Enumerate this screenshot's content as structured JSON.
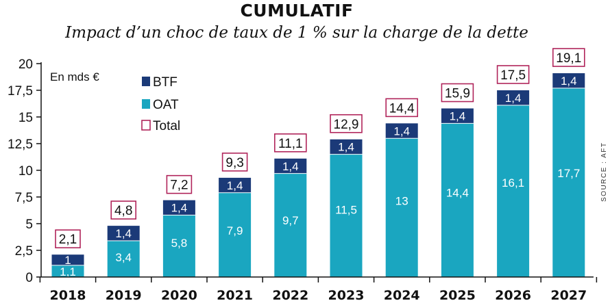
{
  "chart_data": {
    "type": "bar",
    "stacked": true,
    "title": "CUMULATIF",
    "subtitle": "Impact d’un choc de taux de 1 % sur la charge de la dette",
    "unit_label": "En mds €",
    "source": "SOURCE : AFT",
    "categories": [
      "2018",
      "2019",
      "2020",
      "2021",
      "2022",
      "2023",
      "2024",
      "2025",
      "2026",
      "2027"
    ],
    "series": [
      {
        "name": "OAT",
        "color": "#1aa6c0",
        "values": [
          1.1,
          3.4,
          5.8,
          7.9,
          9.7,
          11.5,
          13,
          14.4,
          16.1,
          17.7
        ],
        "labels": [
          "1,1",
          "3,4",
          "5,8",
          "7,9",
          "9,7",
          "11,5",
          "13",
          "14,4",
          "16,1",
          "17,7"
        ]
      },
      {
        "name": "BTF",
        "color": "#1b3a78",
        "values": [
          1,
          1.4,
          1.4,
          1.4,
          1.4,
          1.4,
          1.4,
          1.4,
          1.4,
          1.4
        ],
        "labels": [
          "1",
          "1,4",
          "1,4",
          "1,4",
          "1,4",
          "1,4",
          "1,4",
          "1,4",
          "1,4",
          "1,4"
        ]
      }
    ],
    "totals": {
      "name": "Total",
      "color": "#b0245a",
      "values": [
        2.1,
        4.8,
        7.2,
        9.3,
        11.1,
        12.9,
        14.4,
        15.9,
        17.5,
        19.1
      ],
      "labels": [
        "2,1",
        "4,8",
        "7,2",
        "9,3",
        "11,1",
        "12,9",
        "14,4",
        "15,9",
        "17,5",
        "19,1"
      ]
    },
    "yticks": [
      0,
      2.5,
      5,
      7.5,
      10,
      12.5,
      15,
      17.5,
      20
    ],
    "ytick_labels": [
      "0",
      "2,5",
      "5",
      "7,5",
      "10",
      "12,5",
      "15",
      "17,5",
      "20"
    ],
    "ylim": [
      0,
      20
    ],
    "legend": [
      "BTF",
      "OAT",
      "Total"
    ],
    "legend_position": "top-left",
    "grid": false
  }
}
